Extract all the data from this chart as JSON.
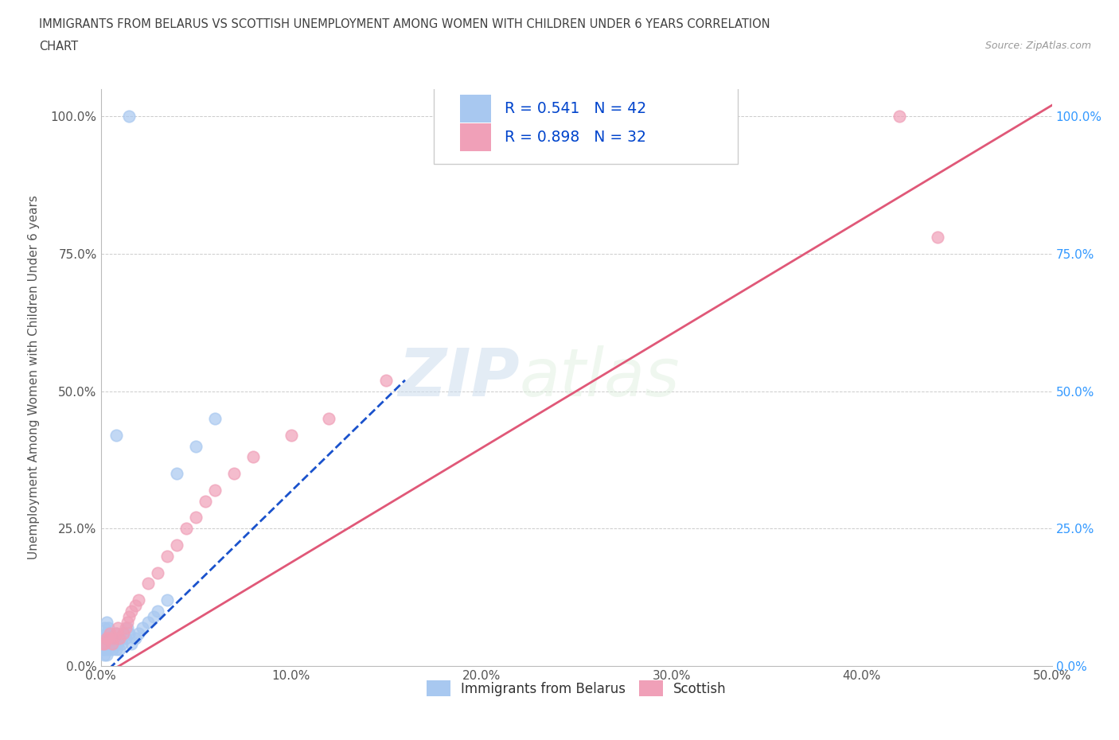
{
  "title_line1": "IMMIGRANTS FROM BELARUS VS SCOTTISH UNEMPLOYMENT AMONG WOMEN WITH CHILDREN UNDER 6 YEARS CORRELATION",
  "title_line2": "CHART",
  "source_text": "Source: ZipAtlas.com",
  "ylabel": "Unemployment Among Women with Children Under 6 years",
  "legend_blue_text": "R = 0.541   N = 42",
  "legend_pink_text": "R = 0.898   N = 32",
  "legend_label_blue": "Immigrants from Belarus",
  "legend_label_pink": "Scottish",
  "xmin": 0.0,
  "xmax": 0.5,
  "ymin": 0.0,
  "ymax": 1.05,
  "xtick_labels": [
    "0.0%",
    "10.0%",
    "20.0%",
    "30.0%",
    "40.0%",
    "50.0%"
  ],
  "xtick_vals": [
    0.0,
    0.1,
    0.2,
    0.3,
    0.4,
    0.5
  ],
  "ytick_labels": [
    "0.0%",
    "25.0%",
    "50.0%",
    "75.0%",
    "100.0%"
  ],
  "ytick_vals": [
    0.0,
    0.25,
    0.5,
    0.75,
    1.0
  ],
  "blue_color": "#A8C8F0",
  "pink_color": "#F0A0B8",
  "blue_line_color": "#1A52CC",
  "pink_line_color": "#E05878",
  "blue_line_dash": true,
  "watermark_zip": "ZIP",
  "watermark_atlas": "atlas",
  "grid_color": "#CCCCCC",
  "bg_color": "#FFFFFF",
  "title_color": "#404040",
  "right_tick_color": "#3399FF",
  "blue_scatter_x": [
    0.001,
    0.001,
    0.001,
    0.002,
    0.002,
    0.002,
    0.002,
    0.003,
    0.003,
    0.003,
    0.003,
    0.004,
    0.004,
    0.004,
    0.005,
    0.005,
    0.006,
    0.006,
    0.007,
    0.008,
    0.008,
    0.009,
    0.01,
    0.01,
    0.011,
    0.012,
    0.013,
    0.014,
    0.015,
    0.016,
    0.018,
    0.02,
    0.022,
    0.025,
    0.028,
    0.03,
    0.035,
    0.04,
    0.05,
    0.06,
    0.015,
    0.008
  ],
  "blue_scatter_y": [
    0.03,
    0.04,
    0.05,
    0.02,
    0.03,
    0.05,
    0.07,
    0.02,
    0.04,
    0.06,
    0.08,
    0.03,
    0.05,
    0.07,
    0.04,
    0.06,
    0.03,
    0.05,
    0.04,
    0.03,
    0.06,
    0.04,
    0.03,
    0.05,
    0.04,
    0.06,
    0.05,
    0.07,
    0.06,
    0.04,
    0.05,
    0.06,
    0.07,
    0.08,
    0.09,
    0.1,
    0.12,
    0.35,
    0.4,
    0.45,
    1.0,
    0.42
  ],
  "pink_scatter_x": [
    0.001,
    0.002,
    0.003,
    0.004,
    0.005,
    0.006,
    0.007,
    0.008,
    0.009,
    0.01,
    0.012,
    0.013,
    0.014,
    0.015,
    0.016,
    0.018,
    0.02,
    0.025,
    0.03,
    0.035,
    0.04,
    0.045,
    0.05,
    0.055,
    0.06,
    0.07,
    0.08,
    0.1,
    0.12,
    0.15,
    0.42,
    0.44
  ],
  "pink_scatter_y": [
    0.04,
    0.04,
    0.05,
    0.05,
    0.06,
    0.04,
    0.05,
    0.06,
    0.07,
    0.05,
    0.06,
    0.07,
    0.08,
    0.09,
    0.1,
    0.11,
    0.12,
    0.15,
    0.17,
    0.2,
    0.22,
    0.25,
    0.27,
    0.3,
    0.32,
    0.35,
    0.38,
    0.42,
    0.45,
    0.52,
    1.0,
    0.78
  ],
  "blue_trendline_x0": 0.0,
  "blue_trendline_x1": 0.16,
  "blue_trendline_y0": -0.02,
  "blue_trendline_y1": 0.52,
  "pink_trendline_x0": 0.0,
  "pink_trendline_x1": 0.5,
  "pink_trendline_y0": -0.02,
  "pink_trendline_y1": 1.02
}
